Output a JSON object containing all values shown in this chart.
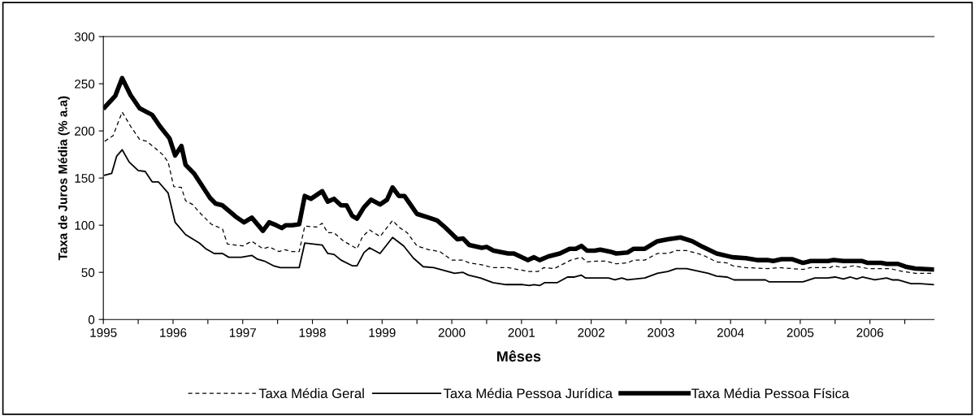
{
  "chart_data": {
    "type": "line",
    "xlabel": "Mêses",
    "ylabel": "Taxa de Juros Média (% a.a)",
    "xlim": [
      1995,
      2006.92
    ],
    "xticks": [
      {
        "value": 1995,
        "label": "1995"
      },
      {
        "value": 1995.5,
        "label": null
      },
      {
        "value": 1996,
        "label": "1996"
      },
      {
        "value": 1996.5,
        "label": null
      },
      {
        "value": 1997,
        "label": "1997"
      },
      {
        "value": 1997.5,
        "label": null
      },
      {
        "value": 1998,
        "label": "1998"
      },
      {
        "value": 1998.5,
        "label": null
      },
      {
        "value": 1999,
        "label": "1999"
      },
      {
        "value": 1999.5,
        "label": null
      },
      {
        "value": 2000,
        "label": "2000"
      },
      {
        "value": 2000.5,
        "label": null
      },
      {
        "value": 2001,
        "label": "2001"
      },
      {
        "value": 2001.5,
        "label": null
      },
      {
        "value": 2002,
        "label": "2002"
      },
      {
        "value": 2002.5,
        "label": null
      },
      {
        "value": 2003,
        "label": "2003"
      },
      {
        "value": 2003.5,
        "label": null
      },
      {
        "value": 2004,
        "label": "2004"
      },
      {
        "value": 2004.5,
        "label": null
      },
      {
        "value": 2005,
        "label": "2005"
      },
      {
        "value": 2005.5,
        "label": null
      },
      {
        "value": 2006,
        "label": "2006"
      },
      {
        "value": 2006.5,
        "label": null
      }
    ],
    "ylim": [
      0,
      300
    ],
    "yticks": [
      0,
      50,
      100,
      150,
      200,
      250,
      300
    ],
    "grid": false,
    "legend": "bottom",
    "marker": "none",
    "series": [
      {
        "name": "Taxa Média Geral",
        "color": "#000000",
        "line_style": "dashed",
        "x": [
          1995.02,
          1995.14,
          1995.27,
          1995.39,
          1995.52,
          1995.62,
          1995.74,
          1995.85,
          1995.93,
          1996.01,
          1996.12,
          1996.18,
          1996.28,
          1996.4,
          1996.55,
          1996.71,
          1996.78,
          1997.0,
          1997.13,
          1997.29,
          1997.38,
          1997.52,
          1997.6,
          1997.71,
          1997.81,
          1997.89,
          1998.06,
          1998.14,
          1998.22,
          1998.31,
          1998.45,
          1998.57,
          1998.64,
          1998.72,
          1998.82,
          1998.97,
          1999.15,
          1999.24,
          1999.36,
          1999.5,
          1999.67,
          1999.83,
          2000.0,
          2000.16,
          2000.25,
          2000.43,
          2000.59,
          2000.81,
          2001.09,
          2001.24,
          2001.32,
          2001.47,
          2001.71,
          2001.86,
          2001.94,
          2002.09,
          2002.21,
          2002.36,
          2002.52,
          2002.61,
          2002.77,
          2002.95,
          2003.1,
          2003.22,
          2003.37,
          2003.53,
          2003.64,
          2003.8,
          2003.95,
          2004.03,
          2004.22,
          2004.53,
          2004.69,
          2004.88,
          2005.04,
          2005.15,
          2005.43,
          2005.48,
          2005.62,
          2005.77,
          2005.97,
          2006.28,
          2006.47,
          2006.65,
          2006.92
        ],
        "values": [
          189,
          195,
          220,
          205,
          191,
          189,
          182,
          175,
          167,
          141,
          140,
          126,
          122,
          112,
          101,
          96,
          80,
          78,
          83,
          75,
          77,
          72,
          74,
          72,
          72,
          99,
          98,
          102,
          92,
          92,
          83,
          78,
          75,
          88,
          95,
          88,
          105,
          98,
          92,
          78,
          74,
          72,
          63,
          63,
          60,
          58,
          55,
          55,
          51,
          51,
          55,
          54,
          63,
          66,
          61,
          62,
          62,
          59,
          60,
          63,
          63,
          70,
          70,
          73,
          73,
          70,
          67,
          61,
          60,
          57,
          55,
          54,
          55,
          54,
          53,
          55,
          55,
          57,
          55,
          57,
          54,
          54,
          51,
          49,
          49
        ]
      },
      {
        "name": "Taxa Média Pessoa Jurídica",
        "color": "#000000",
        "line_style": "solid",
        "x": [
          1995.02,
          1995.12,
          1995.19,
          1995.27,
          1995.37,
          1995.5,
          1995.6,
          1995.7,
          1995.79,
          1995.93,
          1996.03,
          1996.18,
          1996.38,
          1996.47,
          1996.59,
          1996.71,
          1996.8,
          1996.98,
          1997.13,
          1997.21,
          1997.31,
          1997.44,
          1997.54,
          1997.71,
          1997.81,
          1997.89,
          1998.14,
          1998.22,
          1998.31,
          1998.41,
          1998.57,
          1998.64,
          1998.74,
          1998.82,
          1998.97,
          1999.15,
          1999.31,
          1999.45,
          1999.59,
          1999.74,
          1999.89,
          2000.04,
          2000.16,
          2000.24,
          2000.41,
          2000.59,
          2000.78,
          2001.02,
          2001.11,
          2001.18,
          2001.26,
          2001.33,
          2001.51,
          2001.66,
          2001.76,
          2001.86,
          2001.92,
          2002.25,
          2002.34,
          2002.44,
          2002.52,
          2002.77,
          2002.95,
          2003.1,
          2003.22,
          2003.37,
          2003.49,
          2003.68,
          2003.8,
          2003.95,
          2004.05,
          2004.5,
          2004.55,
          2005.04,
          2005.21,
          2005.39,
          2005.5,
          2005.62,
          2005.72,
          2005.81,
          2005.89,
          2006.07,
          2006.24,
          2006.32,
          2006.4,
          2006.59,
          2006.72,
          2006.92
        ],
        "values": [
          153,
          155,
          173,
          180,
          167,
          158,
          157,
          146,
          146,
          134,
          103,
          90,
          81,
          75,
          70,
          70,
          66,
          66,
          68,
          64,
          62,
          57,
          55,
          55,
          55,
          81,
          79,
          70,
          69,
          63,
          57,
          57,
          71,
          76,
          70,
          87,
          78,
          65,
          56,
          55,
          52,
          49,
          50,
          47,
          44,
          39,
          37,
          37,
          36,
          37,
          36,
          39,
          39,
          45,
          45,
          47,
          44,
          44,
          42,
          44,
          42,
          44,
          49,
          51,
          54,
          54,
          52,
          49,
          46,
          45,
          42,
          42,
          40,
          40,
          44,
          44,
          45,
          43,
          45,
          43,
          45,
          42,
          44,
          42,
          42,
          38,
          38,
          37
        ]
      },
      {
        "name": "Taxa Média Pessoa Física",
        "color": "#000000",
        "line_style": "solid",
        "x": [
          1995.02,
          1995.17,
          1995.27,
          1995.39,
          1995.52,
          1995.7,
          1995.81,
          1995.95,
          1996.03,
          1996.12,
          1996.18,
          1996.3,
          1996.53,
          1996.61,
          1996.71,
          1996.9,
          1997.02,
          1997.13,
          1997.29,
          1997.38,
          1997.48,
          1997.56,
          1997.62,
          1997.71,
          1997.81,
          1997.89,
          1997.98,
          1998.14,
          1998.22,
          1998.31,
          1998.41,
          1998.49,
          1998.57,
          1998.64,
          1998.74,
          1998.84,
          1998.97,
          1999.07,
          1999.15,
          1999.24,
          1999.32,
          1999.5,
          1999.67,
          1999.79,
          1999.9,
          2000.08,
          2000.16,
          2000.25,
          2000.43,
          2000.5,
          2000.6,
          2000.81,
          2000.89,
          2001.09,
          2001.18,
          2001.26,
          2001.39,
          2001.55,
          2001.69,
          2001.78,
          2001.86,
          2001.94,
          2002.05,
          2002.13,
          2002.27,
          2002.36,
          2002.52,
          2002.61,
          2002.77,
          2002.95,
          2003.1,
          2003.28,
          2003.45,
          2003.6,
          2003.8,
          2004.03,
          2004.22,
          2004.38,
          2004.53,
          2004.61,
          2004.73,
          2004.88,
          2005.04,
          2005.15,
          2005.4,
          2005.48,
          2005.62,
          2005.89,
          2005.97,
          2006.16,
          2006.24,
          2006.4,
          2006.51,
          2006.65,
          2006.92
        ],
        "values": [
          225,
          237,
          256,
          238,
          224,
          217,
          205,
          192,
          174,
          184,
          164,
          155,
          129,
          123,
          121,
          109,
          103,
          108,
          94,
          103,
          100,
          97,
          100,
          100,
          101,
          131,
          128,
          136,
          125,
          128,
          121,
          121,
          110,
          107,
          119,
          127,
          122,
          127,
          140,
          131,
          131,
          112,
          108,
          105,
          98,
          85,
          86,
          79,
          76,
          77,
          73,
          70,
          70,
          63,
          66,
          63,
          67,
          70,
          75,
          75,
          78,
          73,
          73,
          74,
          72,
          70,
          71,
          75,
          75,
          83,
          85,
          87,
          83,
          77,
          70,
          66,
          65,
          63,
          63,
          62,
          64,
          64,
          60,
          62,
          62,
          63,
          62,
          62,
          60,
          60,
          59,
          59,
          56,
          54,
          53
        ]
      }
    ]
  }
}
